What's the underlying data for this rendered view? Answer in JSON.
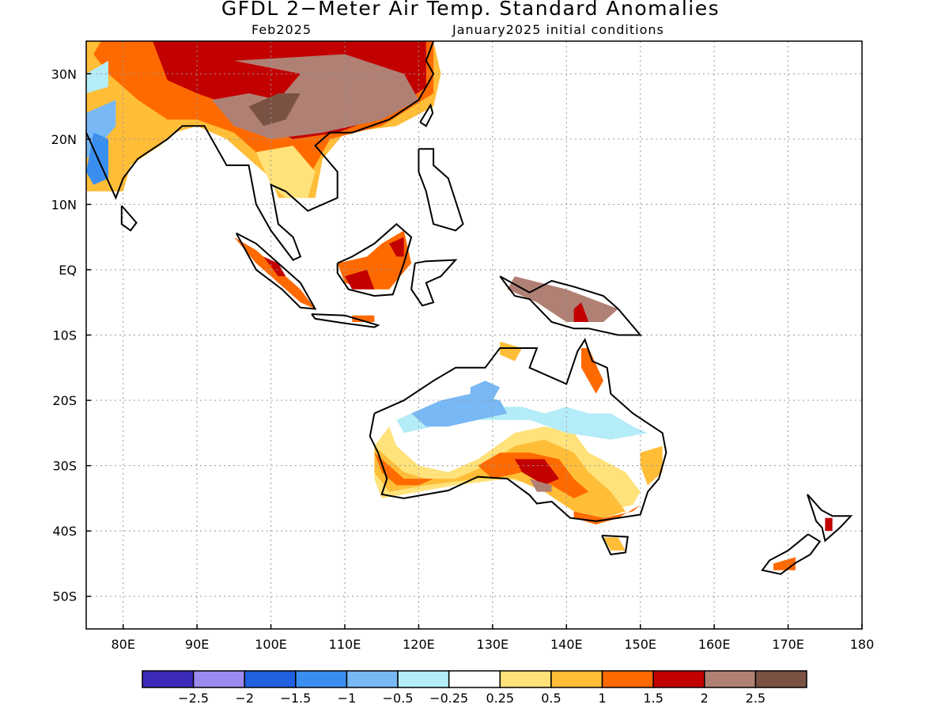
{
  "title": "GFDL 2−Meter Air Temp. Standard Anomalies",
  "subtitle_left": "Feb2025",
  "subtitle_right": "January2025 initial conditions",
  "map": {
    "lon_range": [
      75,
      180
    ],
    "lat_range": [
      -55,
      35
    ],
    "lat_ticks": [
      {
        "value": 30,
        "label": "30N"
      },
      {
        "value": 20,
        "label": "20N"
      },
      {
        "value": 10,
        "label": "10N"
      },
      {
        "value": 0,
        "label": "EQ"
      },
      {
        "value": -10,
        "label": "10S"
      },
      {
        "value": -20,
        "label": "20S"
      },
      {
        "value": -30,
        "label": "30S"
      },
      {
        "value": -40,
        "label": "40S"
      },
      {
        "value": -50,
        "label": "50S"
      }
    ],
    "lon_ticks": [
      {
        "value": 80,
        "label": "80E"
      },
      {
        "value": 90,
        "label": "90E"
      },
      {
        "value": 100,
        "label": "100E"
      },
      {
        "value": 110,
        "label": "110E"
      },
      {
        "value": 120,
        "label": "120E"
      },
      {
        "value": 130,
        "label": "130E"
      },
      {
        "value": 140,
        "label": "140E"
      },
      {
        "value": 150,
        "label": "150E"
      },
      {
        "value": 160,
        "label": "160E"
      },
      {
        "value": 170,
        "label": "170E"
      },
      {
        "value": 180,
        "label": "180"
      }
    ]
  },
  "colorbar": {
    "colors": [
      "#3b2bb8",
      "#9b8af0",
      "#1f5fe0",
      "#3a8ef0",
      "#78b8f5",
      "#b4ecf8",
      "#ffffff",
      "#ffe27a",
      "#ffbd38",
      "#ff6a00",
      "#c30000",
      "#b08074",
      "#7a5244"
    ],
    "labels": [
      "−2.5",
      "−2",
      "−1.5",
      "−1",
      "−0.5",
      "−0.25",
      "0.25",
      "0.5",
      "1",
      "1.5",
      "2",
      "2.5"
    ]
  }
}
